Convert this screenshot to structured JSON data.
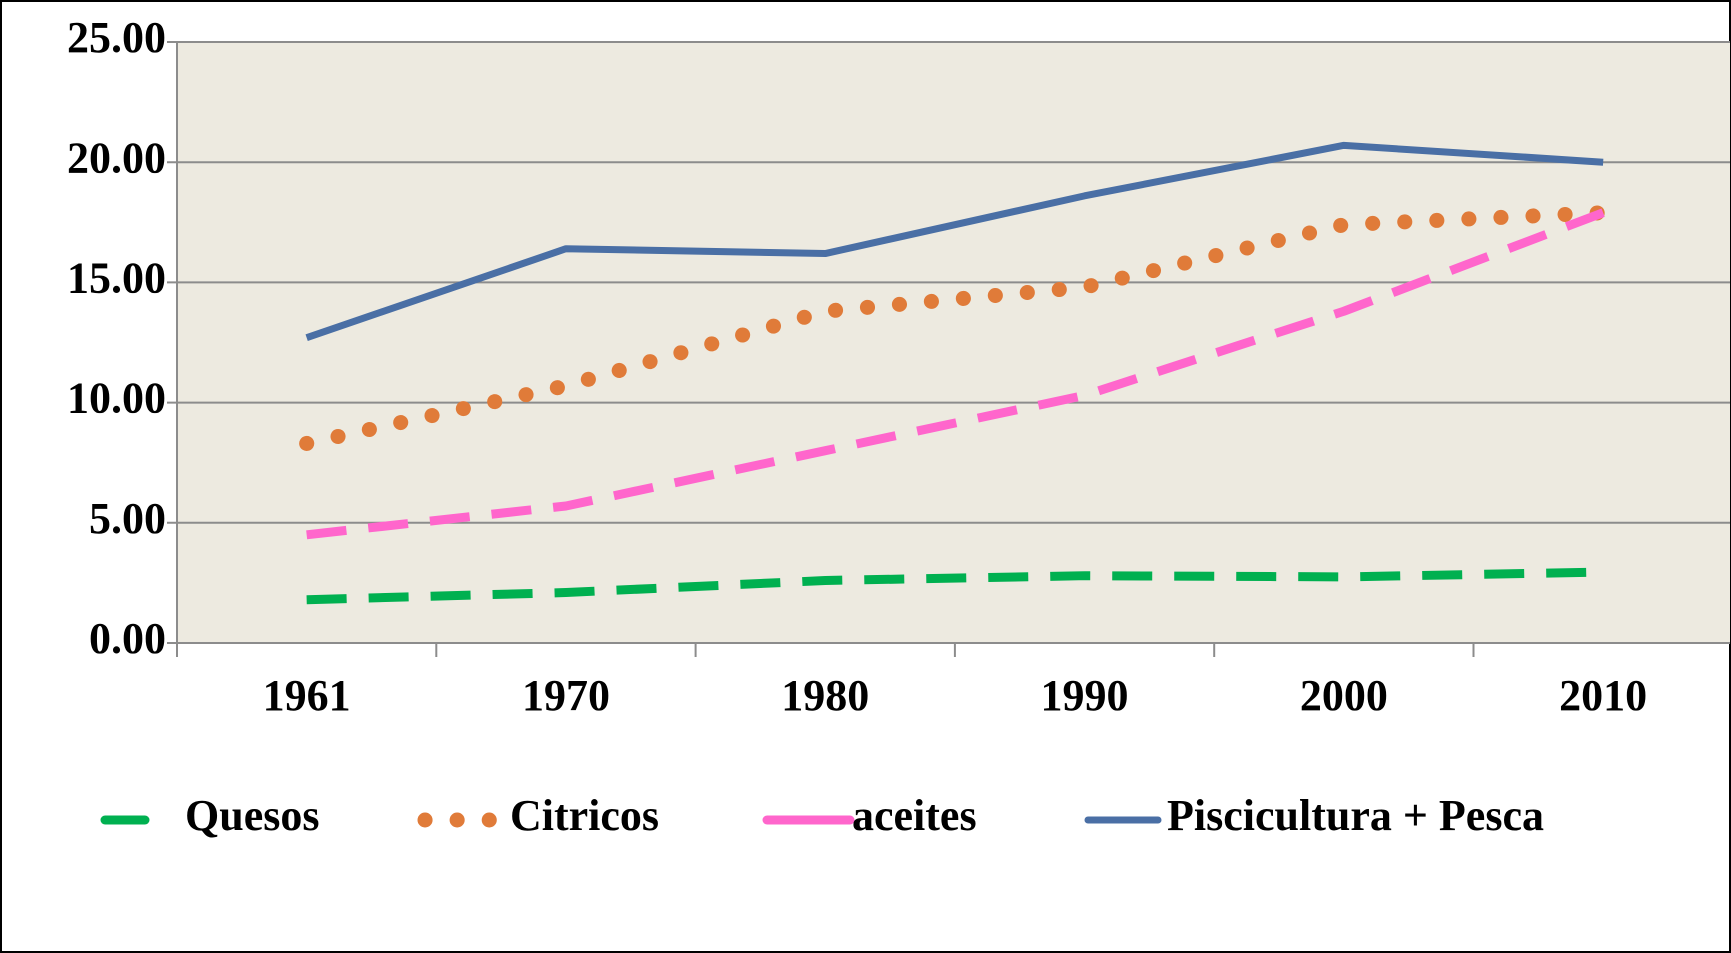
{
  "chart_data": {
    "type": "line",
    "categories": [
      "1961",
      "1970",
      "1980",
      "1990",
      "2000",
      "2010"
    ],
    "series": [
      {
        "name": "Quesos",
        "color": "#00b050",
        "line_style": "dash",
        "values": [
          1.8,
          2.1,
          2.6,
          2.8,
          2.75,
          2.95
        ]
      },
      {
        "name": "Citricos",
        "color": "#e07b39",
        "line_style": "dot",
        "values": [
          8.3,
          10.7,
          13.8,
          14.8,
          17.4,
          17.9
        ]
      },
      {
        "name": "aceites",
        "color": "#ff66cc",
        "line_style": "dash",
        "values": [
          4.5,
          5.7,
          8.0,
          10.3,
          13.8,
          17.9
        ]
      },
      {
        "name": "Piscicultura + Pesca",
        "color": "#4a6fa5",
        "line_style": "solid",
        "values": [
          12.7,
          16.4,
          16.2,
          18.6,
          20.7,
          20.0
        ]
      }
    ],
    "ylim": [
      0,
      25
    ],
    "yticks": [
      {
        "value": 0,
        "label": "0.00"
      },
      {
        "value": 5,
        "label": "5.00"
      },
      {
        "value": 10,
        "label": "10.00"
      },
      {
        "value": 15,
        "label": "15.00"
      },
      {
        "value": 20,
        "label": "20.00"
      },
      {
        "value": 25,
        "label": "25.00"
      }
    ],
    "grid": true,
    "legend": "bottom"
  }
}
